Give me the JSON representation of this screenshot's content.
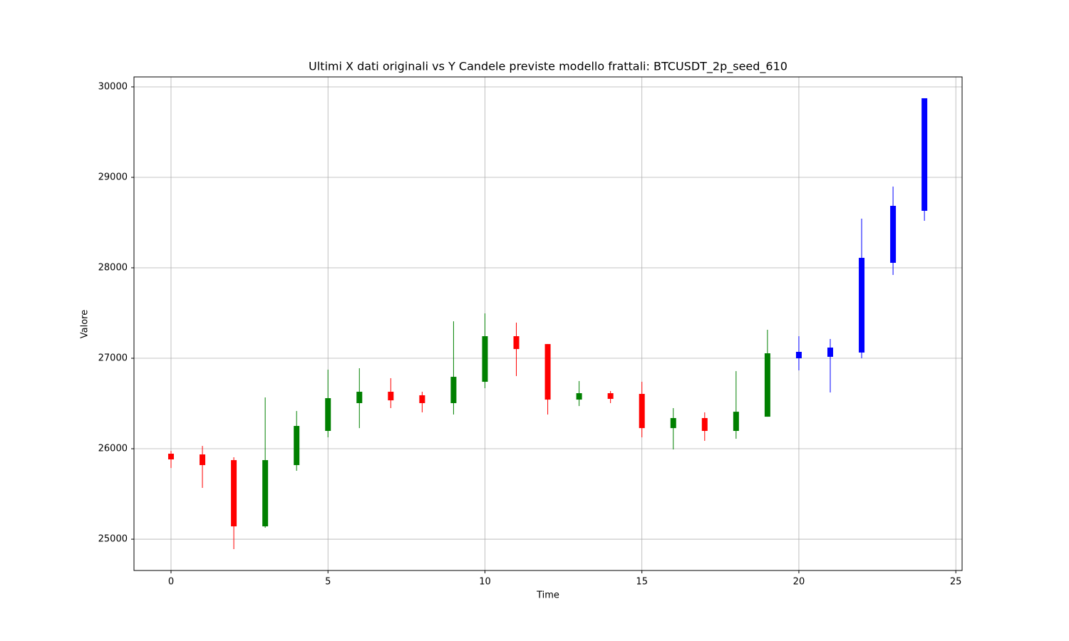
{
  "chart_data": {
    "type": "candlestick",
    "title": "Ultimi X dati originali vs Y Candele previste modello frattali: BTCUSDT_2p_seed_610",
    "x_label": "Time",
    "y_label": "Valore",
    "xlim": [
      -1.18,
      25.2
    ],
    "ylim": [
      24654,
      30110
    ],
    "xticks": [
      0,
      5,
      10,
      15,
      20,
      25
    ],
    "yticks": [
      25000,
      26000,
      27000,
      28000,
      29000,
      30000
    ],
    "grid": true,
    "up_color": "green",
    "down_color": "red",
    "original": {
      "x": [
        0,
        1,
        2,
        3,
        4,
        5,
        6,
        7,
        8,
        9,
        10,
        11,
        12,
        13,
        14,
        15,
        16,
        17,
        18,
        19
      ],
      "open": [
        25945,
        25937,
        25874,
        25142,
        25819,
        26197,
        26504,
        26630,
        26591,
        26504,
        26740,
        27244,
        27157,
        26543,
        26614,
        26606,
        26228,
        26339,
        26197,
        26354
      ],
      "high": [
        25976,
        26031,
        25906,
        26567,
        26417,
        26874,
        26890,
        26780,
        26630,
        27409,
        27496,
        27394,
        27157,
        26748,
        26638,
        26740,
        26449,
        26402,
        26858,
        27315
      ],
      "low": [
        25787,
        25567,
        24890,
        25126,
        25756,
        26126,
        26228,
        26449,
        26402,
        26378,
        26669,
        26803,
        26378,
        26472,
        26504,
        26126,
        25992,
        26087,
        26110,
        26354
      ],
      "close": [
        25882,
        25819,
        25142,
        25874,
        26252,
        26559,
        26630,
        26535,
        26504,
        26795,
        27244,
        27102,
        26543,
        26614,
        26551,
        26228,
        26339,
        26197,
        26409,
        27055
      ]
    },
    "forecast": {
      "color": "blue",
      "x": [
        20,
        21,
        22,
        23,
        24
      ],
      "open": [
        27000,
        27016,
        27063,
        28055,
        28630
      ],
      "high": [
        27244,
        27213,
        28543,
        28898,
        29874
      ],
      "low": [
        26866,
        26622,
        27000,
        27921,
        28520
      ],
      "close": [
        27071,
        27118,
        28110,
        28685,
        29874
      ]
    }
  }
}
